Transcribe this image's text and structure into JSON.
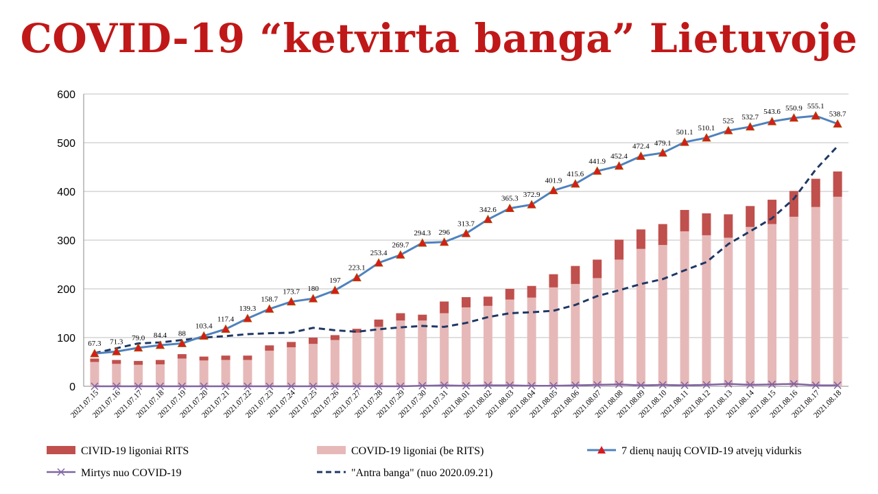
{
  "title": "COVID-19 “ketvirta banga” Lietuvoje",
  "colors": {
    "rits": "#c0504d",
    "non_rits": "#e6b9b8",
    "avg7": "#4f81bd",
    "marker": "#d81b1b",
    "deaths": "#8064a2",
    "second_wave": "#1f3864",
    "title": "#c01818"
  },
  "chart_data": {
    "type": "bar",
    "ylim": [
      0,
      600
    ],
    "yticks": [
      0,
      100,
      200,
      300,
      400,
      500,
      600
    ],
    "grid": true,
    "legend_position": "bottom",
    "categories": [
      "2021.07.15",
      "2021.07.16",
      "2021.07.17",
      "2021.07.18",
      "2021.07.19",
      "2021.07.20",
      "2021.07.21",
      "2021.07.22",
      "2021.07.23",
      "2021.07.24",
      "2021.07.25",
      "2021.07.26",
      "2021.07.27",
      "2021.07.28",
      "2021.07.29",
      "2021.07.30",
      "2021.07.31",
      "2021.08.01",
      "2021.08.02",
      "2021.08.03",
      "2021.08.04",
      "2021.08.05",
      "2021.08.06",
      "2021.08.07",
      "2021.08.08",
      "2021.08.09",
      "2021.08.10",
      "2021.08.11",
      "2021.08.12",
      "2021.08.13",
      "2021.08.14",
      "2021.08.15",
      "2021.08.16",
      "2021.08.17",
      "2021.08.18"
    ],
    "series": [
      {
        "name": "COVID-19 ligoniai (be RITS)",
        "kind": "stacked-bar-base",
        "values": [
          50,
          46,
          44,
          45,
          57,
          53,
          54,
          54,
          73,
          80,
          87,
          95,
          110,
          122,
          135,
          135,
          150,
          162,
          165,
          178,
          182,
          203,
          210,
          222,
          260,
          282,
          290,
          318,
          310,
          305,
          327,
          333,
          348,
          368,
          389
        ]
      },
      {
        "name": "CIVID-19 ligoniai RITS",
        "kind": "stacked-bar-top",
        "values": [
          7,
          8,
          8,
          9,
          9,
          8,
          9,
          9,
          11,
          11,
          13,
          10,
          8,
          15,
          15,
          12,
          24,
          21,
          19,
          22,
          24,
          27,
          37,
          38,
          41,
          40,
          43,
          44,
          45,
          48,
          43,
          50,
          53,
          58,
          52
        ]
      },
      {
        "name": "7 dienų naujų COVID-19 atvejų vidurkis",
        "kind": "line-markers",
        "values": [
          67.3,
          71.3,
          79.0,
          84.4,
          88,
          103.4,
          117.4,
          139.3,
          158.7,
          173.7,
          180,
          197,
          223.1,
          253.4,
          269.7,
          294.3,
          296,
          313.7,
          342.6,
          365.3,
          372.9,
          401.9,
          415.6,
          441.9,
          452.4,
          472.4,
          479.1,
          501.1,
          510.1,
          525,
          532.7,
          543.6,
          550.9,
          555.1,
          538.7
        ],
        "labels": [
          "67.3",
          "71.3",
          "79.0",
          "84.4",
          "88",
          "103.4",
          "117.4",
          "139.3",
          "158.7",
          "173.7",
          "180",
          "197",
          "223.1",
          "253.4",
          "269.7",
          "294.3",
          "296",
          "313.7",
          "342.6",
          "365.3",
          "372.9",
          "401.9",
          "415.6",
          "441.9",
          "452.4",
          "472.4",
          "479.1",
          "501.1",
          "510.1",
          "525",
          "532.7",
          "543.6",
          "550.9",
          "555.1",
          "538.7"
        ]
      },
      {
        "name": "Mirtys nuo COVID-19",
        "kind": "line-x",
        "values": [
          0,
          0,
          0,
          0,
          0,
          0,
          0,
          0,
          0,
          0,
          0,
          0,
          0,
          0,
          0,
          1,
          2,
          1,
          2,
          2,
          1,
          1,
          2,
          3,
          4,
          2,
          3,
          2,
          3,
          5,
          3,
          4,
          5,
          2,
          2
        ]
      },
      {
        "name": "\"Antra banga\" (nuo 2020.09.21)",
        "kind": "dashed-line",
        "values": [
          68,
          78,
          88,
          90,
          95,
          100,
          103,
          107,
          109,
          110,
          120,
          115,
          112,
          117,
          121,
          124,
          122,
          130,
          142,
          150,
          152,
          155,
          167,
          185,
          197,
          210,
          220,
          238,
          255,
          292,
          318,
          345,
          385,
          445,
          493
        ]
      }
    ]
  }
}
